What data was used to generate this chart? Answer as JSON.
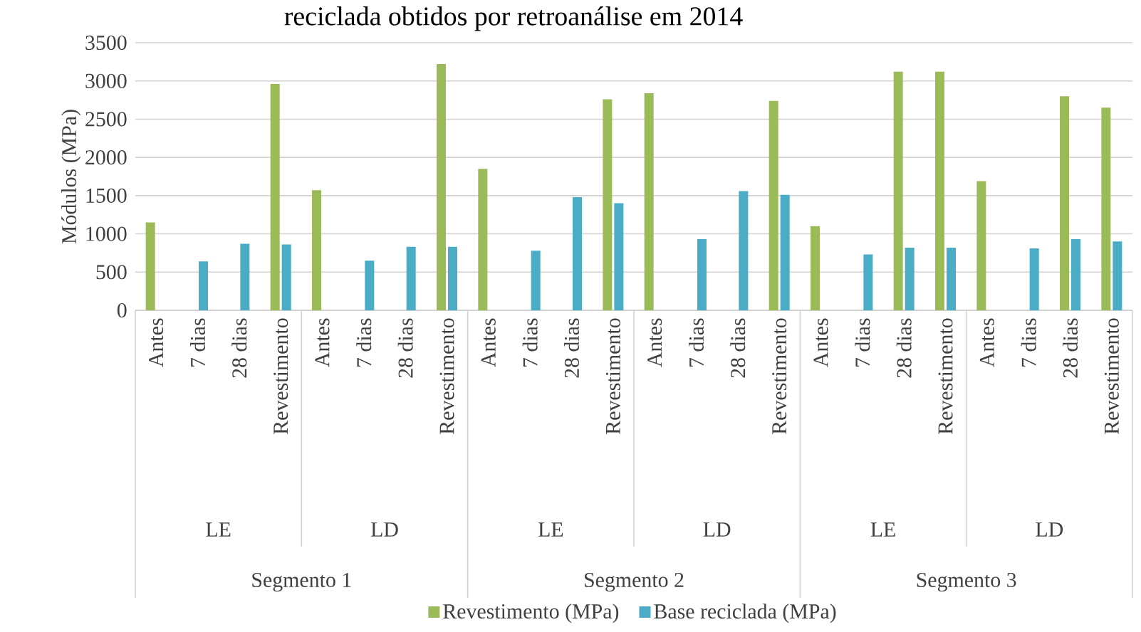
{
  "chart_data": {
    "type": "bar",
    "title": "reciclada obtidos por retroanálise em 2014",
    "ylabel": "Módulos (MPa)",
    "categories": [
      "Antes",
      "7 dias",
      "28 dias",
      "Revestimento",
      "Antes",
      "7 dias",
      "28 dias",
      "Revestimento",
      "Antes",
      "7 dias",
      "28 dias",
      "Revestimento",
      "Antes",
      "7 dias",
      "28 dias",
      "Revestimento",
      "Antes",
      "7 dias",
      "28 dias",
      "Revestimento",
      "Antes",
      "7 dias",
      "28 dias",
      "Revestimento"
    ],
    "series": [
      {
        "name": "Revestimento (MPa)",
        "color": "#9bbb59",
        "values": [
          1150,
          null,
          null,
          2960,
          1570,
          null,
          null,
          3220,
          1850,
          null,
          null,
          2760,
          2840,
          null,
          null,
          2740,
          1100,
          null,
          3120,
          3120,
          1690,
          null,
          2800,
          2650
        ]
      },
      {
        "name": "Base reciclada (MPa)",
        "color": "#4bacc6",
        "values": [
          null,
          640,
          870,
          860,
          null,
          650,
          830,
          830,
          null,
          780,
          1480,
          1400,
          null,
          930,
          1560,
          1510,
          null,
          730,
          820,
          820,
          null,
          810,
          930,
          900
        ]
      }
    ],
    "annotations": [
      "LE",
      "LD",
      "LE",
      "LD",
      "LE",
      "LD",
      "Segmento 1",
      "Segmento 2",
      "Segmento 3"
    ],
    "ylim": [
      0,
      3500
    ],
    "yticks": [
      0,
      500,
      1000,
      1500,
      2000,
      2500,
      3000,
      3500
    ],
    "grid": "y",
    "legend": "bottom"
  }
}
